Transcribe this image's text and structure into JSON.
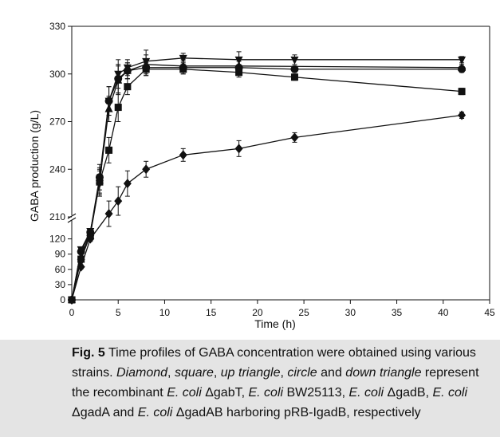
{
  "chart_data": {
    "type": "line",
    "xlabel": "Time (h)",
    "ylabel": "GABA production (g/L)",
    "x_ticks": [
      0,
      5,
      10,
      15,
      20,
      25,
      30,
      35,
      40,
      45
    ],
    "y_ticks_lower": [
      0,
      30,
      60,
      90,
      120
    ],
    "y_ticks_upper": [
      210,
      240,
      270,
      300,
      330
    ],
    "xlim": [
      0,
      45
    ],
    "ylim_lower": [
      0,
      135
    ],
    "ylim_upper": [
      210,
      330
    ],
    "axis_break": true,
    "grid": false,
    "legend": "none",
    "series": [
      {
        "marker": "diamond",
        "x": [
          0,
          1,
          2,
          4,
          5,
          6,
          8,
          12,
          18,
          24,
          42
        ],
        "y": [
          0,
          65,
          120,
          212,
          220,
          231,
          240,
          249,
          253,
          260,
          274
        ],
        "err": [
          0,
          4,
          5,
          8,
          9,
          8,
          5,
          4,
          5,
          3,
          2
        ]
      },
      {
        "marker": "square",
        "x": [
          0,
          1,
          2,
          3,
          4,
          5,
          6,
          8,
          12,
          18,
          24,
          42
        ],
        "y": [
          0,
          80,
          128,
          232,
          252,
          279,
          292,
          303,
          303,
          301,
          298,
          289
        ],
        "err": [
          0,
          5,
          5,
          8,
          8,
          9,
          5,
          4,
          3,
          3,
          2,
          2
        ]
      },
      {
        "marker": "up-triangle",
        "x": [
          0,
          1,
          2,
          3,
          4,
          5,
          6,
          8,
          12,
          18,
          42
        ],
        "y": [
          0,
          85,
          132,
          233,
          278,
          296,
          302,
          306,
          305,
          305,
          304
        ],
        "err": [
          0,
          5,
          5,
          8,
          8,
          9,
          5,
          6,
          4,
          4,
          2
        ]
      },
      {
        "marker": "circle",
        "x": [
          0,
          1,
          2,
          3,
          4,
          5,
          6,
          8,
          12,
          18,
          24,
          42
        ],
        "y": [
          0,
          95,
          133,
          235,
          283,
          297,
          302,
          304,
          304,
          304,
          303,
          303
        ],
        "err": [
          0,
          5,
          5,
          8,
          9,
          9,
          5,
          5,
          4,
          4,
          2,
          2
        ]
      },
      {
        "marker": "down-triangle",
        "x": [
          0,
          1,
          2,
          3,
          4,
          5,
          6,
          8,
          12,
          18,
          24,
          42
        ],
        "y": [
          0,
          99,
          135,
          231,
          283,
          300,
          304,
          308,
          310,
          309,
          309,
          309
        ],
        "err": [
          0,
          5,
          5,
          8,
          9,
          9,
          5,
          7,
          3,
          5,
          3,
          2
        ]
      }
    ]
  },
  "caption": {
    "fig_label": "Fig. 5",
    "t1": " Time profiles of GABA concentration were obtained using various strains. ",
    "i1": "Diamond",
    "t2": ", ",
    "i2": "square",
    "t3": ", ",
    "i3": "up triangle",
    "t4": ", ",
    "i4": "circle",
    "t5": " and ",
    "i5": "down triangle",
    "t6": " represent the recombinant ",
    "i6": "E. coli",
    "t7": " ΔgabT, ",
    "i7": "E. coli",
    "t8": " BW25113, ",
    "i8": "E. coli",
    "t9": " ΔgadB, ",
    "i9": "E. coli",
    "t10": " ΔgadA and ",
    "i10": "E. coli",
    "t11": " ΔgadAB harboring pRB-IgadB, respectively"
  }
}
